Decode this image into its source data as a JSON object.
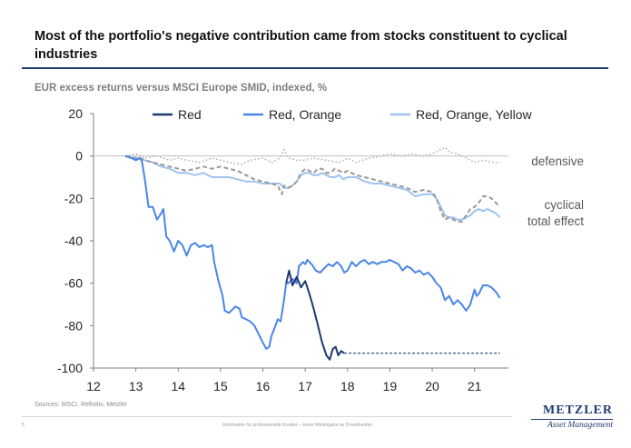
{
  "title": "Most of the portfolio's negative contribution came from stocks constituent to cyclical industries",
  "subtitle": "EUR excess returns versus MSCI Europe SMID, indexed, %",
  "source": "Sources: MSCI, Refinitiv, Metzler",
  "footer": "Information für professionelle Kunden – keine Weitergabe an Privatkunden",
  "page_number": "5",
  "logo": {
    "name": "METZLER",
    "subtitle": "Asset Management"
  },
  "colors": {
    "red": "#1f3a73",
    "red_orange": "#4a86e8",
    "red_orange_yellow": "#9dc3ee",
    "defensive": "#b0b0b0",
    "total": "#9a9a9a"
  },
  "chart_data": {
    "type": "line",
    "title": "",
    "xlabel": "",
    "ylabel": "",
    "xlim": [
      12,
      21.8
    ],
    "ylim": [
      -100,
      20
    ],
    "x_ticks": [
      "12",
      "13",
      "14",
      "15",
      "16",
      "17",
      "18",
      "19",
      "20",
      "21"
    ],
    "y_ticks": [
      "20",
      "0",
      "-20",
      "-40",
      "-60",
      "-80",
      "-100"
    ],
    "legend_position": "top",
    "annotations": [
      {
        "text": "defensive",
        "near_y": -3
      },
      {
        "text": "cyclical",
        "near_y": -24
      },
      {
        "text": "total effect",
        "near_y": -31
      }
    ],
    "series": [
      {
        "name": "Red",
        "style": "solid",
        "points": [
          [
            16.55,
            -60
          ],
          [
            16.62,
            -54
          ],
          [
            16.7,
            -61
          ],
          [
            16.8,
            -57
          ],
          [
            16.9,
            -62
          ],
          [
            17.0,
            -59
          ],
          [
            17.1,
            -65
          ],
          [
            17.2,
            -72
          ],
          [
            17.3,
            -80
          ],
          [
            17.4,
            -88
          ],
          [
            17.5,
            -94
          ],
          [
            17.58,
            -96
          ],
          [
            17.65,
            -91
          ],
          [
            17.72,
            -90
          ],
          [
            17.78,
            -94
          ],
          [
            17.85,
            -92
          ],
          [
            17.92,
            -93
          ]
        ]
      },
      {
        "name": "Red (continued)",
        "style": "dashed",
        "points": [
          [
            17.92,
            -93
          ],
          [
            21.6,
            -93
          ]
        ]
      },
      {
        "name": "Red, Orange",
        "style": "solid",
        "points": [
          [
            12.75,
            0
          ],
          [
            12.9,
            -1
          ],
          [
            13.0,
            -2
          ],
          [
            13.1,
            -1
          ],
          [
            13.15,
            -3
          ],
          [
            13.22,
            -12
          ],
          [
            13.3,
            -24
          ],
          [
            13.4,
            -24
          ],
          [
            13.5,
            -30
          ],
          [
            13.6,
            -27
          ],
          [
            13.65,
            -25
          ],
          [
            13.72,
            -38
          ],
          [
            13.8,
            -40
          ],
          [
            13.9,
            -45
          ],
          [
            14.0,
            -40
          ],
          [
            14.1,
            -42
          ],
          [
            14.2,
            -47
          ],
          [
            14.3,
            -42
          ],
          [
            14.4,
            -41
          ],
          [
            14.5,
            -43
          ],
          [
            14.6,
            -42
          ],
          [
            14.7,
            -43
          ],
          [
            14.8,
            -42
          ],
          [
            14.85,
            -50
          ],
          [
            14.95,
            -59
          ],
          [
            15.05,
            -66
          ],
          [
            15.1,
            -73
          ],
          [
            15.2,
            -74
          ],
          [
            15.3,
            -72
          ],
          [
            15.35,
            -71
          ],
          [
            15.45,
            -72
          ],
          [
            15.5,
            -76
          ],
          [
            15.6,
            -77
          ],
          [
            15.7,
            -78
          ],
          [
            15.8,
            -80
          ],
          [
            15.9,
            -84
          ],
          [
            16.0,
            -88
          ],
          [
            16.08,
            -91
          ],
          [
            16.15,
            -90
          ],
          [
            16.2,
            -85
          ],
          [
            16.3,
            -80
          ],
          [
            16.35,
            -77
          ],
          [
            16.42,
            -78
          ],
          [
            16.5,
            -68
          ],
          [
            16.55,
            -60
          ],
          [
            16.6,
            -60
          ],
          [
            16.7,
            -58
          ],
          [
            16.8,
            -60
          ],
          [
            16.85,
            -52
          ],
          [
            16.95,
            -50
          ],
          [
            17.0,
            -51
          ],
          [
            17.05,
            -49
          ],
          [
            17.15,
            -51
          ],
          [
            17.25,
            -54
          ],
          [
            17.35,
            -55
          ],
          [
            17.45,
            -53
          ],
          [
            17.55,
            -51
          ],
          [
            17.65,
            -52
          ],
          [
            17.75,
            -50
          ],
          [
            17.85,
            -52
          ],
          [
            17.92,
            -55
          ],
          [
            18.0,
            -54
          ],
          [
            18.1,
            -50
          ],
          [
            18.2,
            -52
          ],
          [
            18.3,
            -50
          ],
          [
            18.4,
            -49
          ],
          [
            18.5,
            -51
          ],
          [
            18.6,
            -50
          ],
          [
            18.7,
            -51
          ],
          [
            18.8,
            -50
          ],
          [
            18.9,
            -50
          ],
          [
            19.0,
            -49
          ],
          [
            19.1,
            -50
          ],
          [
            19.2,
            -51
          ],
          [
            19.3,
            -54
          ],
          [
            19.4,
            -52
          ],
          [
            19.5,
            -53
          ],
          [
            19.6,
            -55
          ],
          [
            19.7,
            -54
          ],
          [
            19.8,
            -56
          ],
          [
            19.9,
            -55
          ],
          [
            20.0,
            -57
          ],
          [
            20.1,
            -60
          ],
          [
            20.2,
            -62
          ],
          [
            20.3,
            -68
          ],
          [
            20.4,
            -66
          ],
          [
            20.5,
            -70
          ],
          [
            20.6,
            -68
          ],
          [
            20.7,
            -70
          ],
          [
            20.8,
            -73
          ],
          [
            20.9,
            -70
          ],
          [
            21.0,
            -63
          ],
          [
            21.05,
            -66
          ],
          [
            21.1,
            -65
          ],
          [
            21.2,
            -61
          ],
          [
            21.3,
            -61
          ],
          [
            21.4,
            -62
          ],
          [
            21.5,
            -64
          ],
          [
            21.6,
            -67
          ]
        ]
      },
      {
        "name": "Red, Orange, Yellow",
        "style": "solid",
        "points": [
          [
            12.75,
            0
          ],
          [
            12.9,
            -1
          ],
          [
            13.0,
            -1
          ],
          [
            13.1,
            -1
          ],
          [
            13.2,
            -2
          ],
          [
            13.4,
            -3
          ],
          [
            13.6,
            -5
          ],
          [
            13.8,
            -6
          ],
          [
            14.0,
            -8
          ],
          [
            14.2,
            -8
          ],
          [
            14.4,
            -9
          ],
          [
            14.6,
            -8
          ],
          [
            14.8,
            -10
          ],
          [
            15.0,
            -10
          ],
          [
            15.2,
            -10
          ],
          [
            15.4,
            -11
          ],
          [
            15.6,
            -12
          ],
          [
            15.8,
            -12
          ],
          [
            16.0,
            -13
          ],
          [
            16.2,
            -13
          ],
          [
            16.4,
            -13
          ],
          [
            16.5,
            -15
          ],
          [
            16.6,
            -15
          ],
          [
            16.7,
            -14
          ],
          [
            16.8,
            -12
          ],
          [
            16.9,
            -9
          ],
          [
            17.0,
            -8
          ],
          [
            17.1,
            -8
          ],
          [
            17.2,
            -9
          ],
          [
            17.3,
            -9
          ],
          [
            17.4,
            -8
          ],
          [
            17.5,
            -9
          ],
          [
            17.6,
            -10
          ],
          [
            17.7,
            -10
          ],
          [
            17.8,
            -9
          ],
          [
            17.9,
            -11
          ],
          [
            18.0,
            -10
          ],
          [
            18.2,
            -10
          ],
          [
            18.4,
            -12
          ],
          [
            18.6,
            -13
          ],
          [
            18.8,
            -13
          ],
          [
            19.0,
            -14
          ],
          [
            19.2,
            -15
          ],
          [
            19.4,
            -16
          ],
          [
            19.6,
            -19
          ],
          [
            19.8,
            -18
          ],
          [
            20.0,
            -18
          ],
          [
            20.1,
            -20
          ],
          [
            20.2,
            -24
          ],
          [
            20.3,
            -28
          ],
          [
            20.4,
            -29
          ],
          [
            20.5,
            -29
          ],
          [
            20.6,
            -30
          ],
          [
            20.7,
            -30
          ],
          [
            20.8,
            -29
          ],
          [
            20.9,
            -28
          ],
          [
            21.0,
            -26
          ],
          [
            21.1,
            -25
          ],
          [
            21.2,
            -26
          ],
          [
            21.3,
            -25
          ],
          [
            21.4,
            -26
          ],
          [
            21.5,
            -27
          ],
          [
            21.6,
            -29
          ]
        ]
      },
      {
        "name": "defensive",
        "style": "dotted",
        "points": [
          [
            12.75,
            0
          ],
          [
            13.0,
            1
          ],
          [
            13.2,
            -1
          ],
          [
            13.5,
            0
          ],
          [
            13.8,
            -2
          ],
          [
            14.0,
            -1
          ],
          [
            14.2,
            -2
          ],
          [
            14.5,
            -3
          ],
          [
            14.8,
            -1
          ],
          [
            15.0,
            -2
          ],
          [
            15.2,
            -3
          ],
          [
            15.5,
            -4
          ],
          [
            15.7,
            -2
          ],
          [
            16.0,
            -1
          ],
          [
            16.2,
            -3
          ],
          [
            16.4,
            -1
          ],
          [
            16.5,
            3
          ],
          [
            16.6,
            -1
          ],
          [
            16.8,
            -2
          ],
          [
            17.0,
            -2
          ],
          [
            17.2,
            -1
          ],
          [
            17.5,
            -2
          ],
          [
            17.8,
            -3
          ],
          [
            18.0,
            -1
          ],
          [
            18.2,
            -3
          ],
          [
            18.5,
            -1
          ],
          [
            18.8,
            0
          ],
          [
            19.0,
            1
          ],
          [
            19.3,
            0
          ],
          [
            19.5,
            1
          ],
          [
            19.8,
            0
          ],
          [
            20.0,
            1
          ],
          [
            20.2,
            3
          ],
          [
            20.3,
            4
          ],
          [
            20.4,
            2
          ],
          [
            20.6,
            1
          ],
          [
            20.8,
            -1
          ],
          [
            21.0,
            -3
          ],
          [
            21.2,
            -2
          ],
          [
            21.4,
            -3
          ],
          [
            21.6,
            -3
          ]
        ]
      },
      {
        "name": "total effect",
        "style": "dashed",
        "points": [
          [
            12.75,
            0
          ],
          [
            13.0,
            -1
          ],
          [
            13.1,
            -1
          ],
          [
            13.2,
            -2
          ],
          [
            13.4,
            -3
          ],
          [
            13.6,
            -4
          ],
          [
            13.8,
            -5
          ],
          [
            14.0,
            -6
          ],
          [
            14.2,
            -7
          ],
          [
            14.4,
            -6
          ],
          [
            14.6,
            -5
          ],
          [
            14.8,
            -6
          ],
          [
            15.0,
            -5
          ],
          [
            15.2,
            -6
          ],
          [
            15.4,
            -7
          ],
          [
            15.6,
            -9
          ],
          [
            15.8,
            -11
          ],
          [
            16.0,
            -12
          ],
          [
            16.2,
            -13
          ],
          [
            16.35,
            -14
          ],
          [
            16.45,
            -18
          ],
          [
            16.5,
            -14
          ],
          [
            16.6,
            -15
          ],
          [
            16.7,
            -14
          ],
          [
            16.8,
            -12
          ],
          [
            16.9,
            -8
          ],
          [
            17.0,
            -6
          ],
          [
            17.1,
            -7
          ],
          [
            17.2,
            -8
          ],
          [
            17.3,
            -6
          ],
          [
            17.4,
            -6
          ],
          [
            17.5,
            -8
          ],
          [
            17.6,
            -8
          ],
          [
            17.7,
            -6
          ],
          [
            17.8,
            -7
          ],
          [
            17.9,
            -8
          ],
          [
            18.0,
            -7
          ],
          [
            18.2,
            -9
          ],
          [
            18.4,
            -10
          ],
          [
            18.6,
            -11
          ],
          [
            18.8,
            -12
          ],
          [
            19.0,
            -13
          ],
          [
            19.2,
            -14
          ],
          [
            19.4,
            -15
          ],
          [
            19.6,
            -17
          ],
          [
            19.8,
            -16
          ],
          [
            20.0,
            -17
          ],
          [
            20.1,
            -20
          ],
          [
            20.2,
            -26
          ],
          [
            20.3,
            -30
          ],
          [
            20.4,
            -29
          ],
          [
            20.5,
            -30
          ],
          [
            20.6,
            -31
          ],
          [
            20.7,
            -31
          ],
          [
            20.8,
            -28
          ],
          [
            20.9,
            -25
          ],
          [
            21.0,
            -24
          ],
          [
            21.1,
            -22
          ],
          [
            21.2,
            -19
          ],
          [
            21.3,
            -19
          ],
          [
            21.4,
            -20
          ],
          [
            21.5,
            -22
          ],
          [
            21.6,
            -24
          ]
        ]
      }
    ],
    "legend": [
      {
        "label": "Red",
        "color_key": "red"
      },
      {
        "label": "Red, Orange",
        "color_key": "red_orange"
      },
      {
        "label": "Red, Orange, Yellow",
        "color_key": "red_orange_yellow"
      }
    ]
  }
}
